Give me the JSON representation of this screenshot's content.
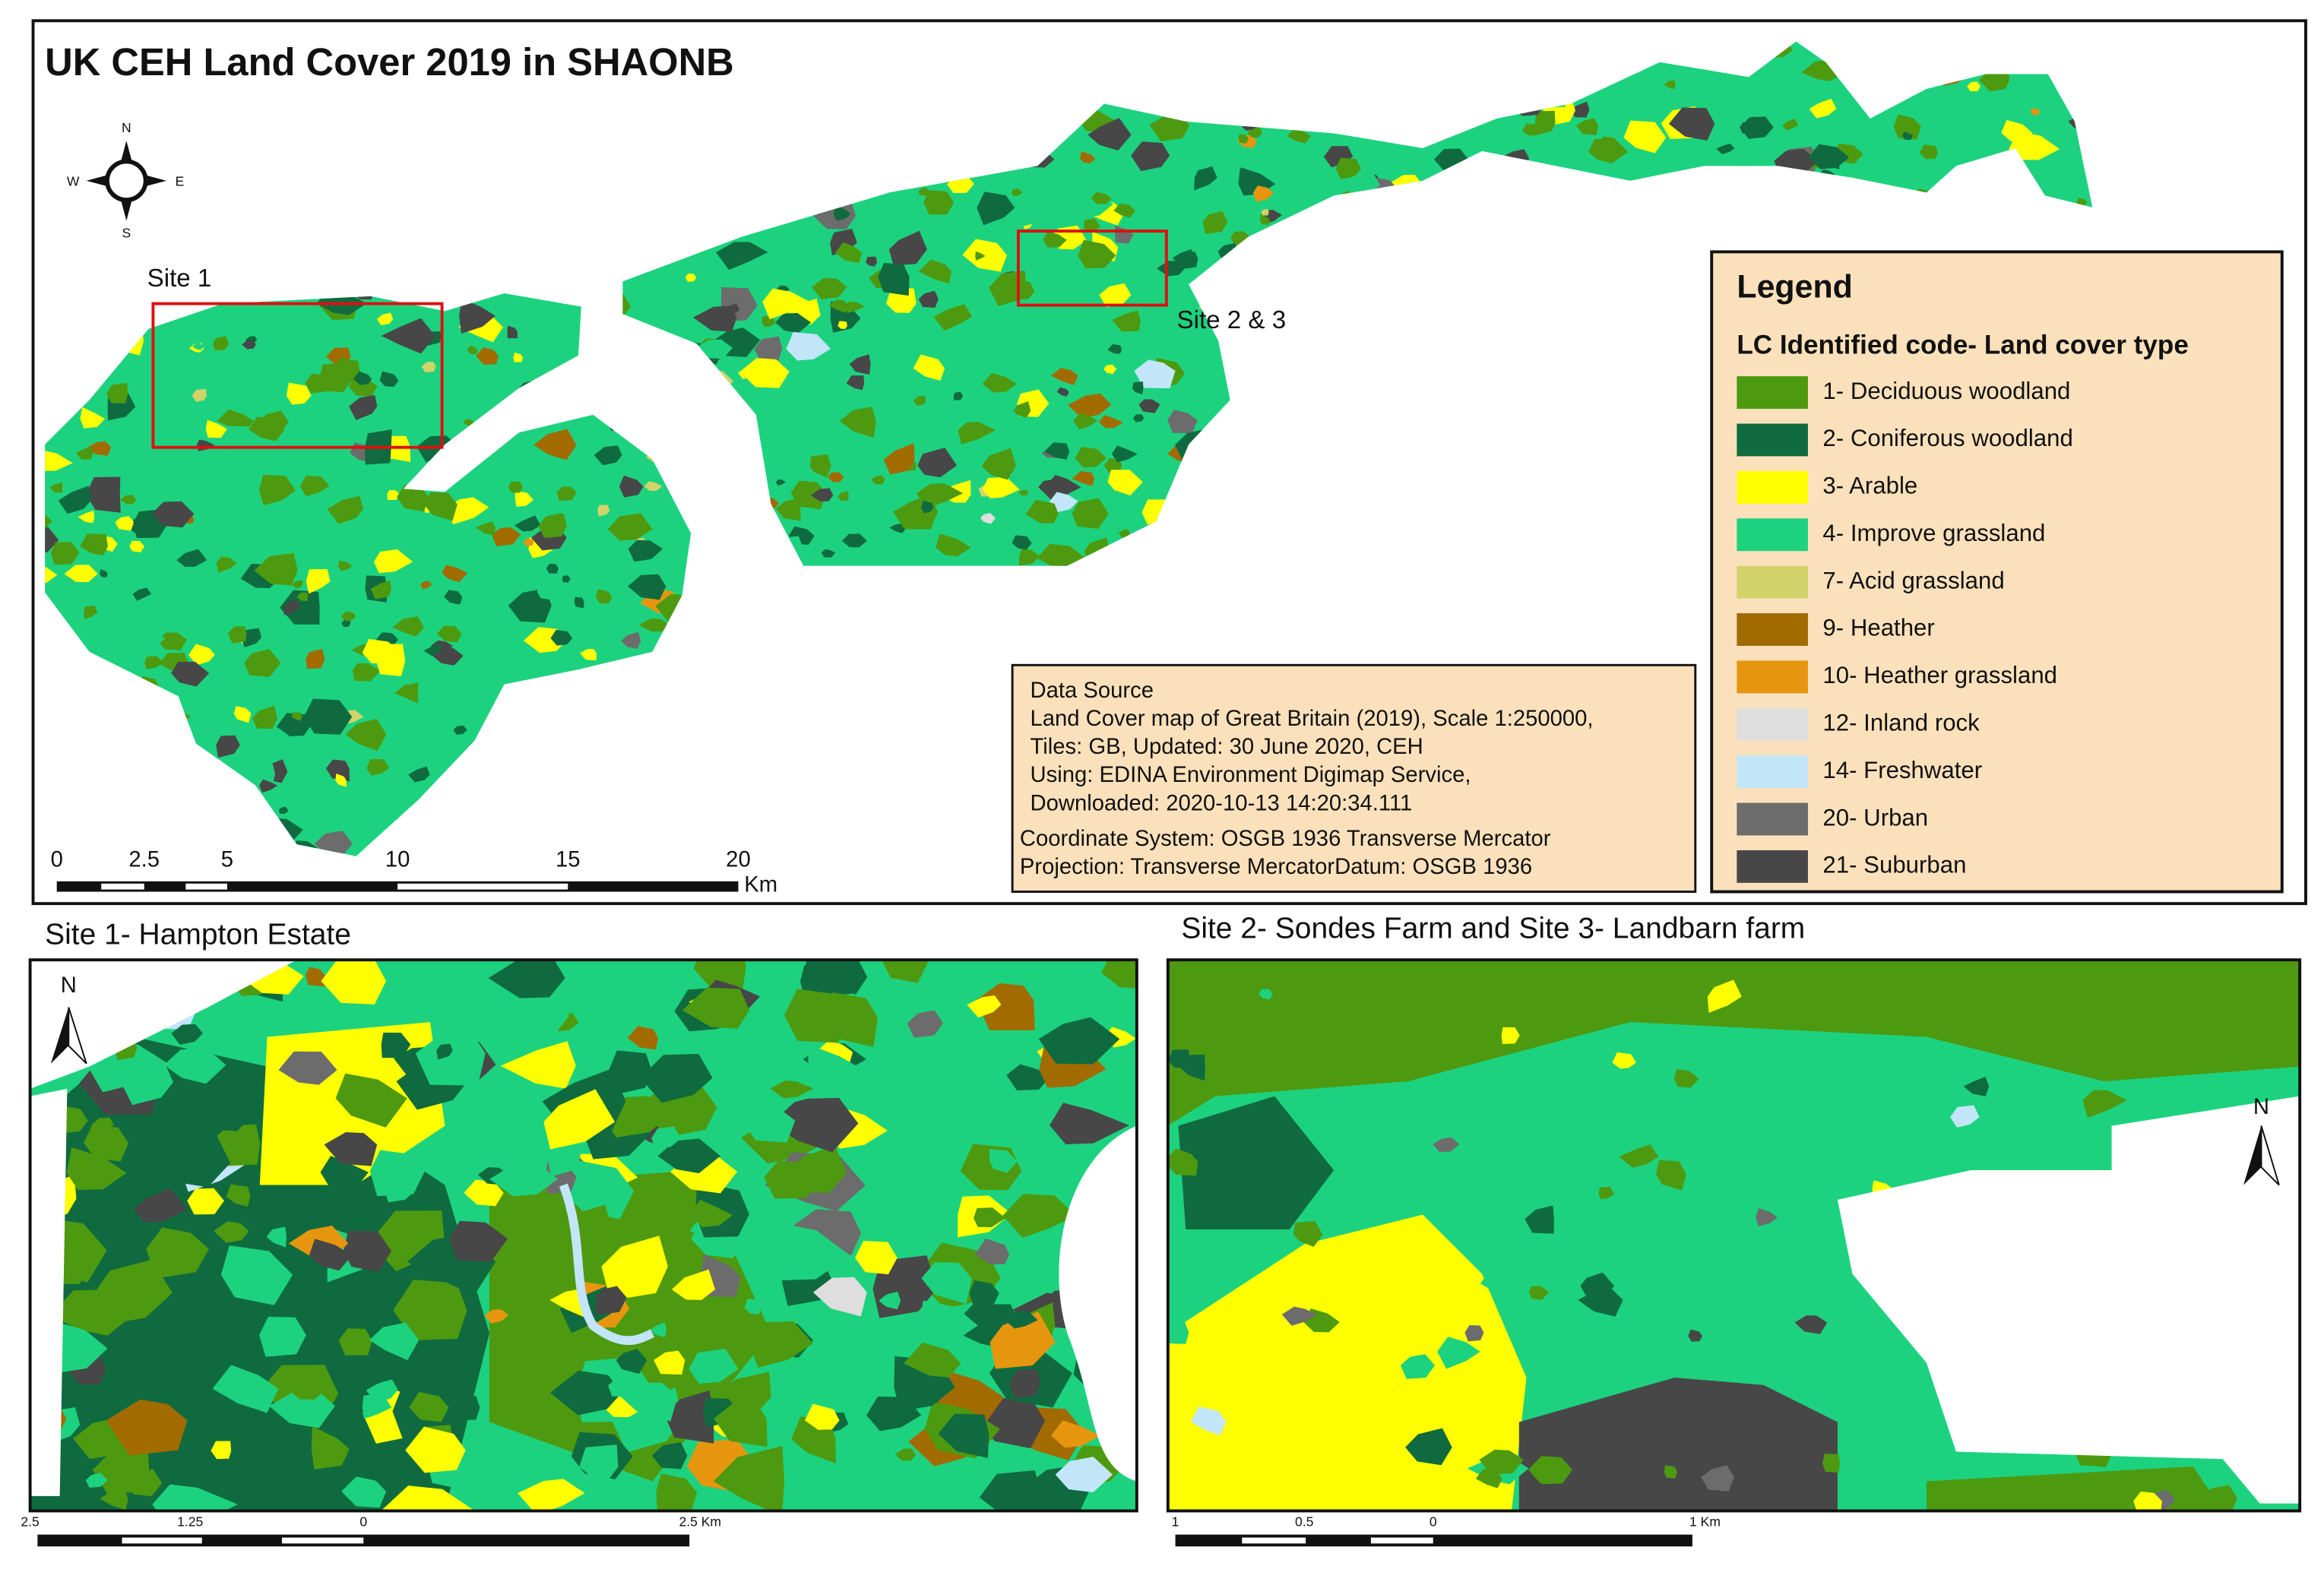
{
  "map": {
    "title": "UK CEH Land Cover 2019 in SHAONB",
    "compass": {
      "n": "N",
      "e": "E",
      "s": "S",
      "w": "W"
    },
    "site_labels": [
      "Site 1",
      "Site 2 & 3"
    ],
    "legend": {
      "title": "Legend",
      "subtitle": "LC Identified code- Land cover type",
      "items": [
        {
          "label": "1- Deciduous woodland",
          "color": "#4d9a10"
        },
        {
          "label": "2- Coniferous woodland",
          "color": "#0f6b3f"
        },
        {
          "label": "3- Arable",
          "color": "#ffff00"
        },
        {
          "label": "4- Improve grassland",
          "color": "#1dd27f"
        },
        {
          "label": "7- Acid grassland",
          "color": "#d2d26a"
        },
        {
          "label": "9- Heather",
          "color": "#a26b00"
        },
        {
          "label": "10- Heather grassland",
          "color": "#e6960e"
        },
        {
          "label": "12- Inland rock",
          "color": "#dedede"
        },
        {
          "label": "14- Freshwater",
          "color": "#c2e5f8"
        },
        {
          "label": "20- Urban",
          "color": "#6c6c6c"
        },
        {
          "label": "21- Suburban",
          "color": "#474747"
        }
      ]
    },
    "data_source": {
      "lines": [
        "Data Source",
        "Land Cover map of Great Britain (2019), Scale 1:250000,",
        "Tiles: GB,  Updated: 30 June 2020, CEH",
        "Using: EDINA Environment Digimap Service,",
        "Downloaded: 2020-10-13 14:20:34.111",
        "Coordinate System: OSGB 1936 Transverse Mercator",
        "Projection: Transverse MercatorDatum: OSGB 1936"
      ]
    },
    "scale_bar": {
      "labels": [
        "0",
        "2.5",
        "5",
        "10",
        "15",
        "20"
      ],
      "unit": "Km"
    }
  },
  "insets": [
    {
      "title": "Site 1- Hampton Estate",
      "north": "N",
      "scale_labels": [
        "2.5",
        "1.25",
        "0",
        "2.5 Km"
      ]
    },
    {
      "title": "Site 2- Sondes Farm and Site 3- Landbarn farm",
      "north": "N",
      "scale_labels": [
        "1",
        "0.5",
        "0",
        "1 Km"
      ]
    }
  ]
}
